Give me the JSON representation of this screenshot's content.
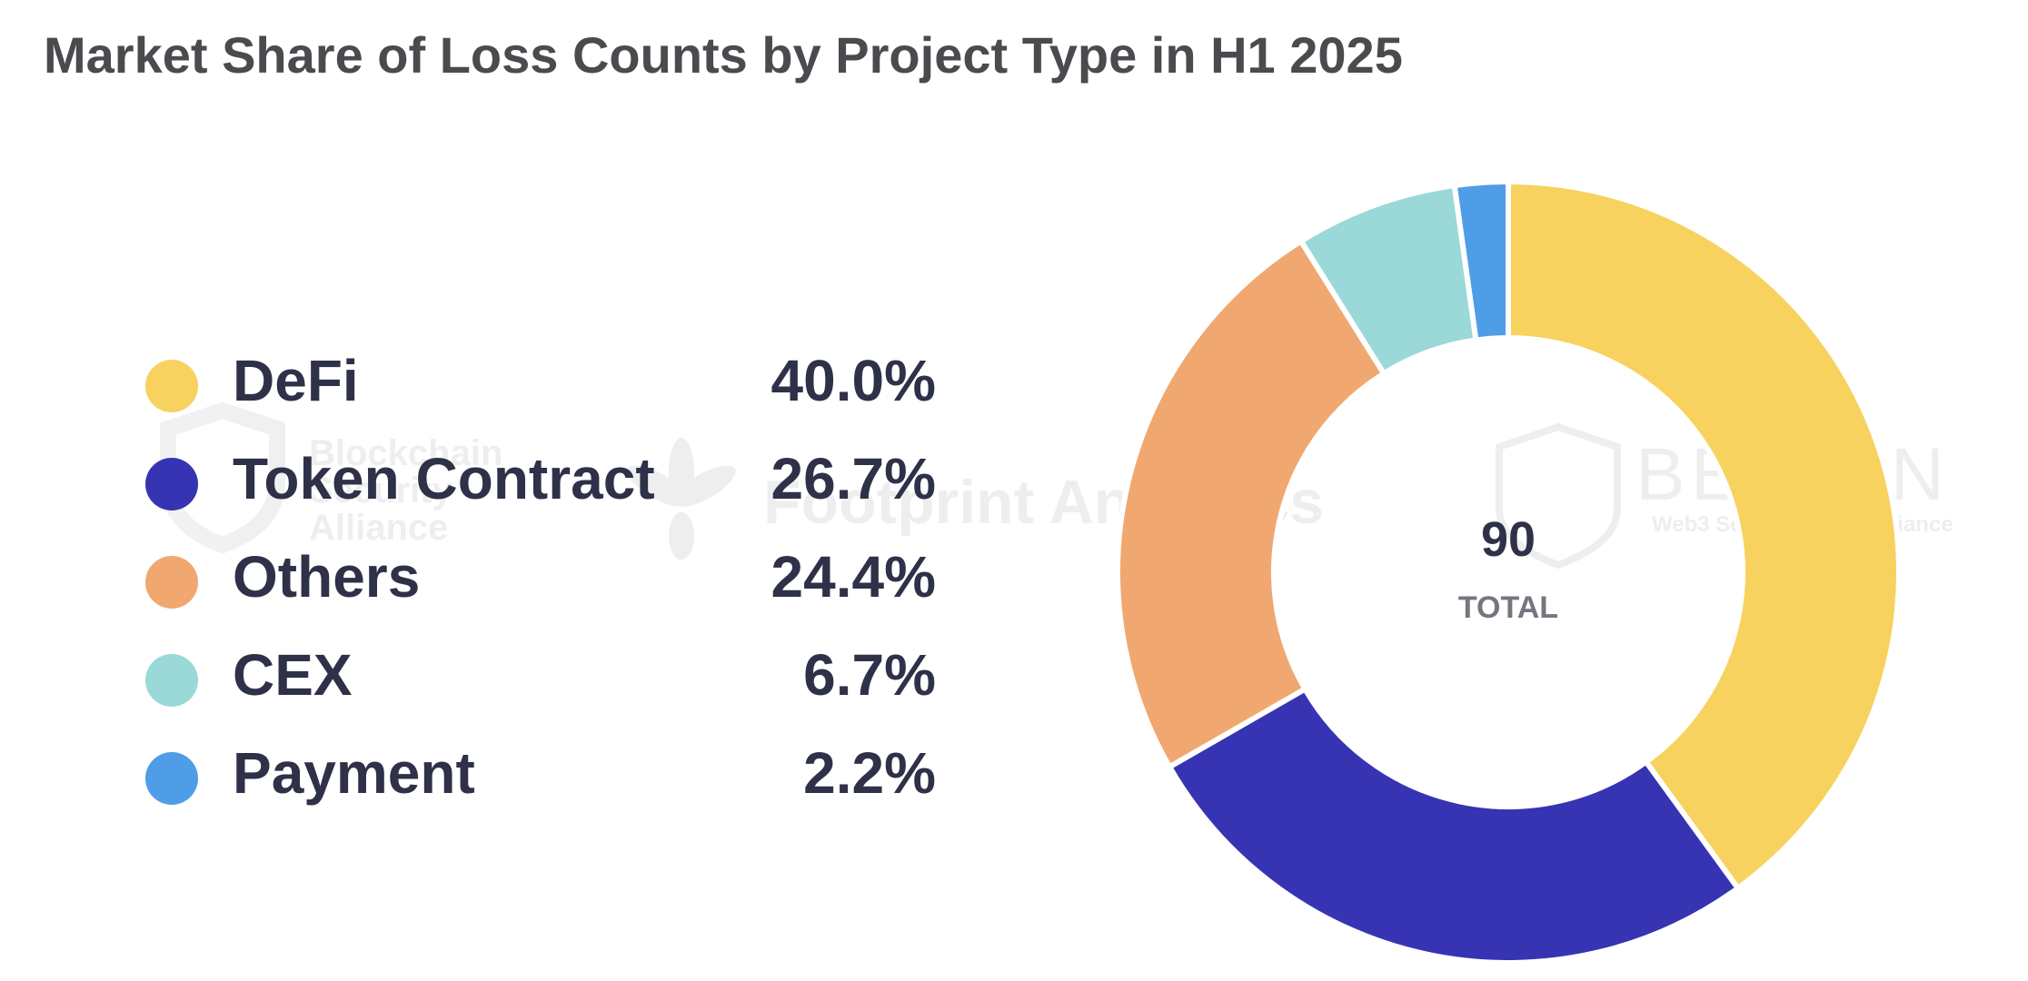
{
  "title": "Market Share of Loss Counts by Project Type in H1 2025",
  "watermarks": {
    "bsa_line1": "Blockchain",
    "bsa_line2": "Security",
    "bsa_line3": "Alliance",
    "footprint": "Footprint Analytics",
    "beosin": "BEOSIN",
    "beosin_sub": "Web3 Security & Compliance"
  },
  "center": {
    "total": "90",
    "total_label": "TOTAL"
  },
  "colors": {
    "defi": "#f7d25f",
    "token_contract": "#3634b3",
    "others": "#f0a870",
    "cex": "#9ad9d8",
    "payment": "#4f9de6"
  },
  "chart_data": {
    "type": "pie",
    "title": "Market Share of Loss Counts by Project Type in H1 2025",
    "total": 90,
    "slices": [
      {
        "name": "DeFi",
        "value": 40.0,
        "label": "40.0%",
        "color": "#f7d25f"
      },
      {
        "name": "Token Contract",
        "value": 26.7,
        "label": "26.7%",
        "color": "#3634b3"
      },
      {
        "name": "Others",
        "value": 24.4,
        "label": "24.4%",
        "color": "#f0a870"
      },
      {
        "name": "CEX",
        "value": 6.7,
        "label": "6.7%",
        "color": "#9ad9d8"
      },
      {
        "name": "Payment",
        "value": 2.2,
        "label": "2.2%",
        "color": "#4f9de6"
      }
    ],
    "legend": "left"
  }
}
